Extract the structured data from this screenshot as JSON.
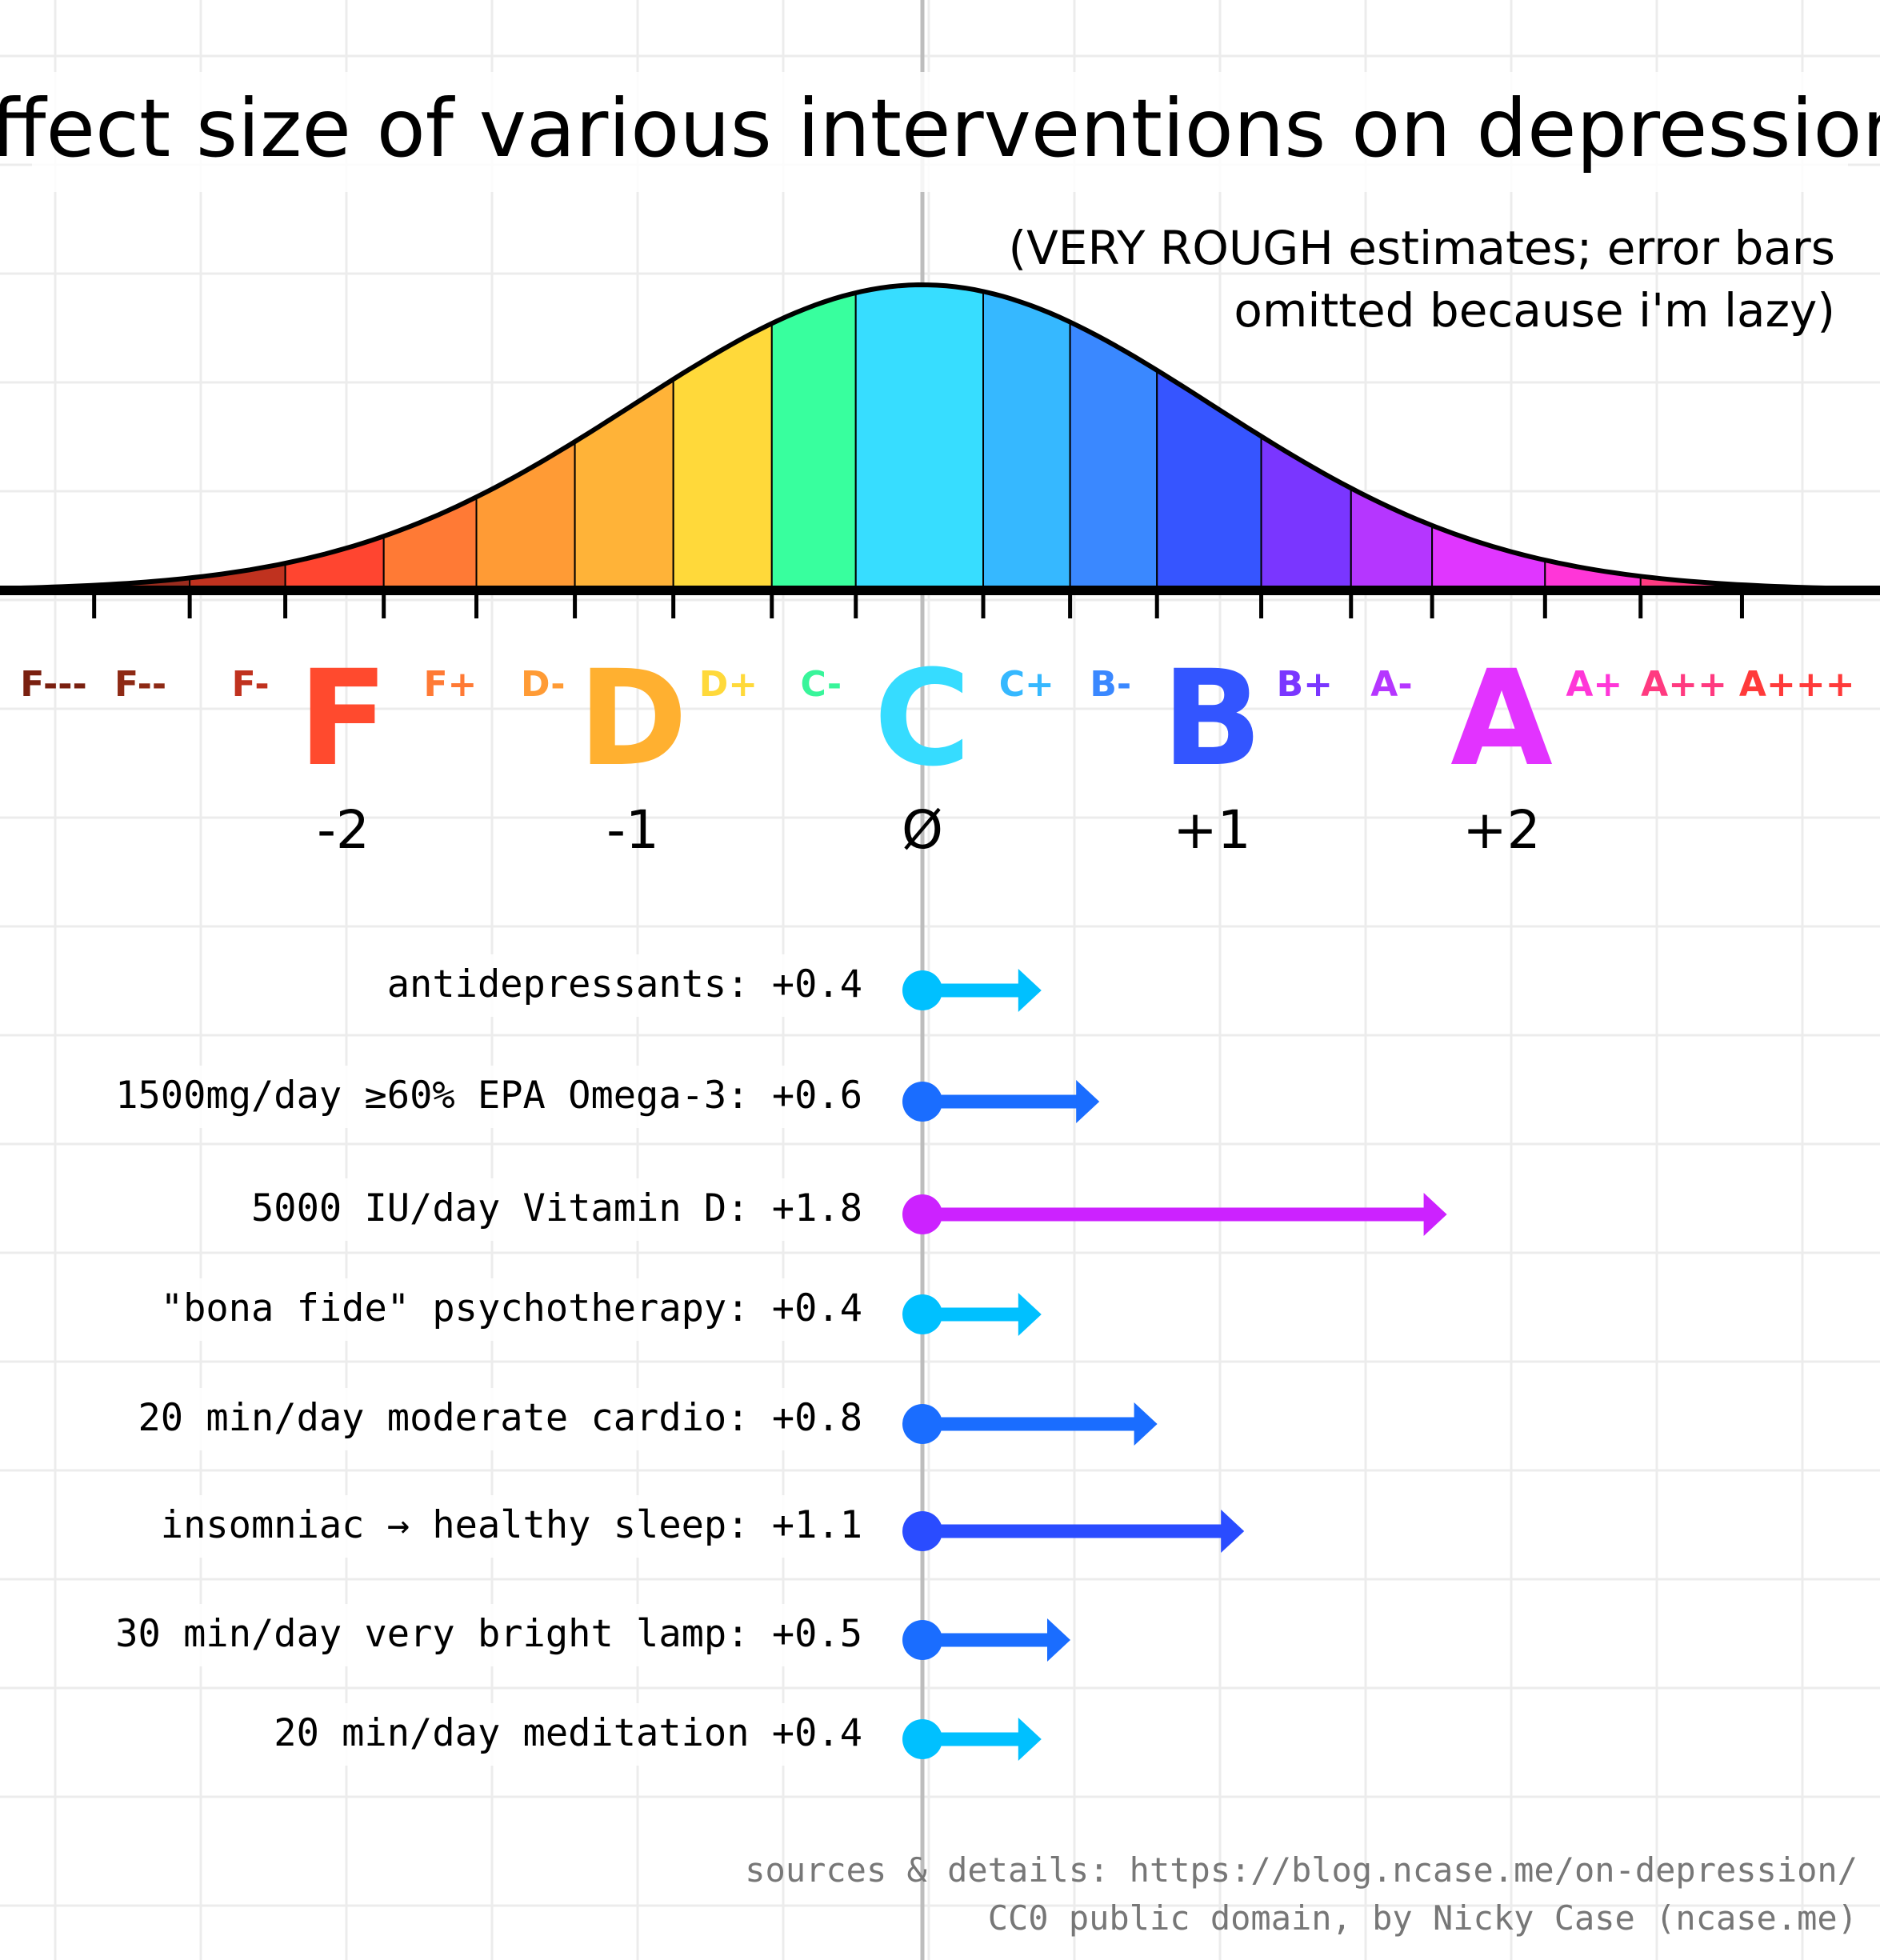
{
  "chart_data": {
    "type": "bar",
    "title": "Effect size of various interventions on depression:",
    "subtitle_lines": [
      "(VERY ROUGH estimates; error bars",
      "omitted because i'm lazy)"
    ],
    "xlim": [
      -3.2,
      3.3
    ],
    "x_ticks": [
      {
        "value": -2,
        "label": "-2"
      },
      {
        "value": -1,
        "label": "-1"
      },
      {
        "value": 0,
        "label": "Ø"
      },
      {
        "value": 1,
        "label": "+1"
      },
      {
        "value": 2,
        "label": "+2"
      }
    ],
    "big_grades": [
      {
        "label": "F",
        "value": -2,
        "color": "#ff4a2e"
      },
      {
        "label": "D",
        "value": -1,
        "color": "#ffb030"
      },
      {
        "label": "C",
        "value": 0,
        "color": "#36dcff"
      },
      {
        "label": "B",
        "value": 1,
        "color": "#3355ff"
      },
      {
        "label": "A",
        "value": 2,
        "color": "#e233ff"
      }
    ],
    "small_grades": [
      {
        "label": "F---",
        "value": -3.0,
        "color": "#7a2010"
      },
      {
        "label": "F--",
        "value": -2.7,
        "color": "#8e2a15"
      },
      {
        "label": "F-",
        "value": -2.32,
        "color": "#c0321f"
      },
      {
        "label": "F+",
        "value": -1.63,
        "color": "#ff7a35"
      },
      {
        "label": "D-",
        "value": -1.31,
        "color": "#ff9b35"
      },
      {
        "label": "D+",
        "value": -0.67,
        "color": "#ffd93a"
      },
      {
        "label": "C-",
        "value": -0.35,
        "color": "#38f59a"
      },
      {
        "label": "C+",
        "value": 0.36,
        "color": "#36b8ff"
      },
      {
        "label": "B-",
        "value": 0.65,
        "color": "#3a88ff"
      },
      {
        "label": "B+",
        "value": 1.32,
        "color": "#7a36ff"
      },
      {
        "label": "A-",
        "value": 1.62,
        "color": "#b536ff"
      },
      {
        "label": "A+",
        "value": 2.32,
        "color": "#ff36d8"
      },
      {
        "label": "A++",
        "value": 2.63,
        "color": "#ff3a80"
      },
      {
        "label": "A+++",
        "value": 3.02,
        "color": "#ff3a3a"
      }
    ],
    "curve_bands": [
      {
        "from": -3.2,
        "to": -2.86,
        "color": "#7a2a1a"
      },
      {
        "from": -2.86,
        "to": -2.53,
        "color": "#9a2c1e"
      },
      {
        "from": -2.53,
        "to": -2.2,
        "color": "#c0321f"
      },
      {
        "from": -2.2,
        "to": -1.86,
        "color": "#ff4530"
      },
      {
        "from": -1.86,
        "to": -1.54,
        "color": "#ff7a35"
      },
      {
        "from": -1.54,
        "to": -1.2,
        "color": "#ff9b35"
      },
      {
        "from": -1.2,
        "to": -0.86,
        "color": "#ffb338"
      },
      {
        "from": -0.86,
        "to": -0.52,
        "color": "#ffd93a"
      },
      {
        "from": -0.52,
        "to": -0.23,
        "color": "#38ff9e"
      },
      {
        "from": -0.23,
        "to": 0.21,
        "color": "#37ddff"
      },
      {
        "from": 0.21,
        "to": 0.51,
        "color": "#36b8ff"
      },
      {
        "from": 0.51,
        "to": 0.81,
        "color": "#3a88ff"
      },
      {
        "from": 0.81,
        "to": 1.17,
        "color": "#3655ff"
      },
      {
        "from": 1.17,
        "to": 1.48,
        "color": "#7a36ff"
      },
      {
        "from": 1.48,
        "to": 1.76,
        "color": "#b536ff"
      },
      {
        "from": 1.76,
        "to": 2.15,
        "color": "#e036ff"
      },
      {
        "from": 2.15,
        "to": 2.48,
        "color": "#ff36d8"
      },
      {
        "from": 2.48,
        "to": 2.83,
        "color": "#ff3a80"
      },
      {
        "from": 2.83,
        "to": 3.3,
        "color": "#ff3a3a"
      }
    ],
    "categories": [
      "antidepressants: +0.4",
      "1500mg/day ≥60% EPA Omega-3: +0.6",
      "5000 IU/day Vitamin D: +1.8",
      "\"bona fide\" psychotherapy: +0.4",
      "20 min/day moderate cardio: +0.8",
      "insomniac → healthy sleep: +1.1",
      "30 min/day very bright lamp: +0.5",
      "20 min/day meditation +0.4"
    ],
    "values": [
      0.4,
      0.6,
      1.8,
      0.4,
      0.8,
      1.1,
      0.5,
      0.4
    ],
    "bar_colors": [
      "#00c0ff",
      "#1a6dff",
      "#cc22ff",
      "#00c0ff",
      "#1a6dff",
      "#2a4cff",
      "#1a6dff",
      "#00c0ff"
    ],
    "grid": true
  },
  "footer": {
    "sources": "sources & details: https://blog.ncase.me/on-depression/",
    "license": "CC0 public domain, by Nicky Case (ncase.me)"
  }
}
